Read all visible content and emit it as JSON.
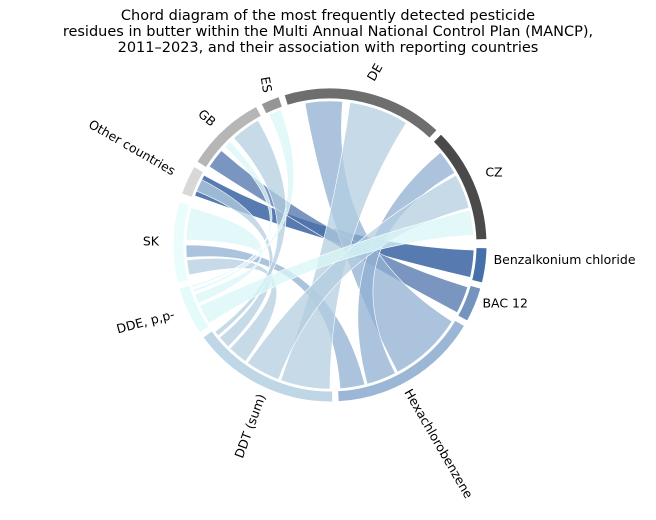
{
  "title_lines": [
    "Chord diagram of the most frequently detected pesticide",
    "residues in butter within the Multi Annual National Control Plan (MANCP),",
    "2011–2023, and their association with reporting countries"
  ],
  "segments": [
    {
      "label": "CZ",
      "color": "#4a4a4a"
    },
    {
      "label": "Benzalkonium chloride",
      "color": "#4570a9"
    },
    {
      "label": "BAC 12",
      "color": "#7593bf"
    },
    {
      "label": "Hexachlorobenzene",
      "color": "#9cb6d6"
    },
    {
      "label": "DDT (sum)",
      "color": "#bed6e6"
    },
    {
      "label": "DDE, p,p-",
      "color": "#e3fbfb"
    },
    {
      "label": "SK",
      "color": "#ebfcfc"
    },
    {
      "label": "Other countries",
      "color": "#d8d8d8"
    },
    {
      "label": "GB",
      "color": "#b6b6b6"
    },
    {
      "label": "ES",
      "color": "#959595"
    },
    {
      "label": "DE",
      "color": "#6e6e6e"
    }
  ],
  "links": [
    {
      "pesticide": "Benzalkonium chloride",
      "country": "Other countries",
      "color": "#1f4f96"
    },
    {
      "pesticide": "BAC 12",
      "country": "GB",
      "color": "#4d73ab"
    },
    {
      "pesticide": "Hexachlorobenzene",
      "country": "DE",
      "color": "#8fafd2"
    },
    {
      "pesticide": "Hexachlorobenzene",
      "country": "CZ",
      "color": "#8fafd2"
    },
    {
      "pesticide": "Hexachlorobenzene",
      "country": "SK",
      "color": "#8fafd2"
    },
    {
      "pesticide": "DDT (sum)",
      "country": "DE",
      "color": "#b3cde0"
    },
    {
      "pesticide": "DDT (sum)",
      "country": "CZ",
      "color": "#b3cde0"
    },
    {
      "pesticide": "DDT (sum)",
      "country": "SK",
      "color": "#b3cde0"
    },
    {
      "pesticide": "DDT (sum)",
      "country": "Other countries",
      "color": "#b3cde0"
    },
    {
      "pesticide": "DDT (sum)",
      "country": "GB",
      "color": "#b3cde0"
    },
    {
      "pesticide": "DDE, p,p-",
      "country": "CZ",
      "color": "#d9f7f7"
    },
    {
      "pesticide": "DDE, p,p-",
      "country": "SK",
      "color": "#d9f7f7"
    },
    {
      "pesticide": "DDE, p,p-",
      "country": "ES",
      "color": "#d9f7f7"
    },
    {
      "pesticide": "DDE, p,p-",
      "country": "GB",
      "color": "#d9f7f7"
    }
  ]
}
